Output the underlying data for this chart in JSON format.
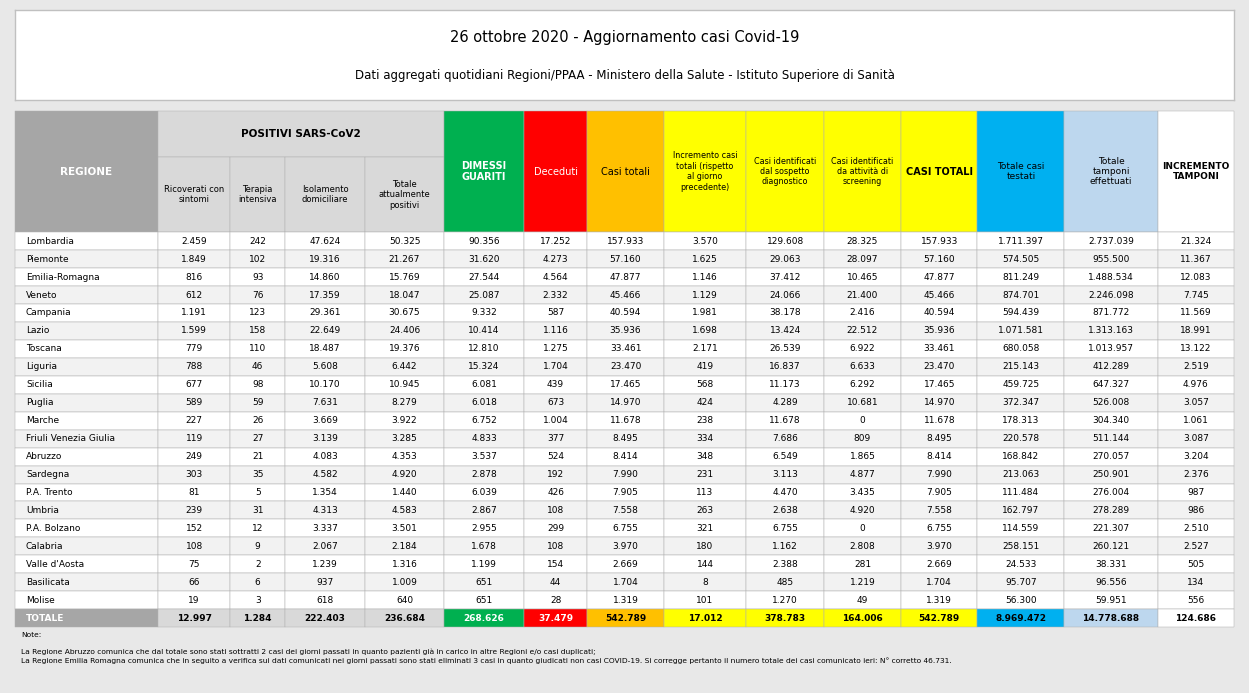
{
  "title1": "26 ottobre 2020 - Aggiornamento casi Covid-19",
  "title2": "Dati aggregati quotidiani Regioni/PPAA - Ministero della Salute - Istituto Superiore di Sanità",
  "rows": [
    [
      "Lombardia",
      "2.459",
      "242",
      "47.624",
      "50.325",
      "90.356",
      "17.252",
      "157.933",
      "3.570",
      "129.608",
      "28.325",
      "157.933",
      "1.711.397",
      "2.737.039",
      "21.324"
    ],
    [
      "Piemonte",
      "1.849",
      "102",
      "19.316",
      "21.267",
      "31.620",
      "4.273",
      "57.160",
      "1.625",
      "29.063",
      "28.097",
      "57.160",
      "574.505",
      "955.500",
      "11.367"
    ],
    [
      "Emilia-Romagna",
      "816",
      "93",
      "14.860",
      "15.769",
      "27.544",
      "4.564",
      "47.877",
      "1.146",
      "37.412",
      "10.465",
      "47.877",
      "811.249",
      "1.488.534",
      "12.083"
    ],
    [
      "Veneto",
      "612",
      "76",
      "17.359",
      "18.047",
      "25.087",
      "2.332",
      "45.466",
      "1.129",
      "24.066",
      "21.400",
      "45.466",
      "874.701",
      "2.246.098",
      "7.745"
    ],
    [
      "Campania",
      "1.191",
      "123",
      "29.361",
      "30.675",
      "9.332",
      "587",
      "40.594",
      "1.981",
      "38.178",
      "2.416",
      "40.594",
      "594.439",
      "871.772",
      "11.569"
    ],
    [
      "Lazio",
      "1.599",
      "158",
      "22.649",
      "24.406",
      "10.414",
      "1.116",
      "35.936",
      "1.698",
      "13.424",
      "22.512",
      "35.936",
      "1.071.581",
      "1.313.163",
      "18.991"
    ],
    [
      "Toscana",
      "779",
      "110",
      "18.487",
      "19.376",
      "12.810",
      "1.275",
      "33.461",
      "2.171",
      "26.539",
      "6.922",
      "33.461",
      "680.058",
      "1.013.957",
      "13.122"
    ],
    [
      "Liguria",
      "788",
      "46",
      "5.608",
      "6.442",
      "15.324",
      "1.704",
      "23.470",
      "419",
      "16.837",
      "6.633",
      "23.470",
      "215.143",
      "412.289",
      "2.519"
    ],
    [
      "Sicilia",
      "677",
      "98",
      "10.170",
      "10.945",
      "6.081",
      "439",
      "17.465",
      "568",
      "11.173",
      "6.292",
      "17.465",
      "459.725",
      "647.327",
      "4.976"
    ],
    [
      "Puglia",
      "589",
      "59",
      "7.631",
      "8.279",
      "6.018",
      "673",
      "14.970",
      "424",
      "4.289",
      "10.681",
      "14.970",
      "372.347",
      "526.008",
      "3.057"
    ],
    [
      "Marche",
      "227",
      "26",
      "3.669",
      "3.922",
      "6.752",
      "1.004",
      "11.678",
      "238",
      "11.678",
      "0",
      "11.678",
      "178.313",
      "304.340",
      "1.061"
    ],
    [
      "Friuli Venezia Giulia",
      "119",
      "27",
      "3.139",
      "3.285",
      "4.833",
      "377",
      "8.495",
      "334",
      "7.686",
      "809",
      "8.495",
      "220.578",
      "511.144",
      "3.087"
    ],
    [
      "Abruzzo",
      "249",
      "21",
      "4.083",
      "4.353",
      "3.537",
      "524",
      "8.414",
      "348",
      "6.549",
      "1.865",
      "8.414",
      "168.842",
      "270.057",
      "3.204"
    ],
    [
      "Sardegna",
      "303",
      "35",
      "4.582",
      "4.920",
      "2.878",
      "192",
      "7.990",
      "231",
      "3.113",
      "4.877",
      "7.990",
      "213.063",
      "250.901",
      "2.376"
    ],
    [
      "P.A. Trento",
      "81",
      "5",
      "1.354",
      "1.440",
      "6.039",
      "426",
      "7.905",
      "113",
      "4.470",
      "3.435",
      "7.905",
      "111.484",
      "276.004",
      "987"
    ],
    [
      "Umbria",
      "239",
      "31",
      "4.313",
      "4.583",
      "2.867",
      "108",
      "7.558",
      "263",
      "2.638",
      "4.920",
      "7.558",
      "162.797",
      "278.289",
      "986"
    ],
    [
      "P.A. Bolzano",
      "152",
      "12",
      "3.337",
      "3.501",
      "2.955",
      "299",
      "6.755",
      "321",
      "6.755",
      "0",
      "6.755",
      "114.559",
      "221.307",
      "2.510"
    ],
    [
      "Calabria",
      "108",
      "9",
      "2.067",
      "2.184",
      "1.678",
      "108",
      "3.970",
      "180",
      "1.162",
      "2.808",
      "3.970",
      "258.151",
      "260.121",
      "2.527"
    ],
    [
      "Valle d'Aosta",
      "75",
      "2",
      "1.239",
      "1.316",
      "1.199",
      "154",
      "2.669",
      "144",
      "2.388",
      "281",
      "2.669",
      "24.533",
      "38.331",
      "505"
    ],
    [
      "Basilicata",
      "66",
      "6",
      "937",
      "1.009",
      "651",
      "44",
      "1.704",
      "8",
      "485",
      "1.219",
      "1.704",
      "95.707",
      "96.556",
      "134"
    ],
    [
      "Molise",
      "19",
      "3",
      "618",
      "640",
      "651",
      "28",
      "1.319",
      "101",
      "1.270",
      "49",
      "1.319",
      "56.300",
      "59.951",
      "556"
    ]
  ],
  "totale": [
    "TOTALE",
    "12.997",
    "1.284",
    "222.403",
    "236.684",
    "268.626",
    "37.479",
    "542.789",
    "17.012",
    "378.783",
    "164.006",
    "542.789",
    "8.969.472",
    "14.778.688",
    "124.686"
  ],
  "note_line1": "Note:",
  "note_line2": "La Regione Abruzzo comunica che dal totale sono stati sottratti 2 casi dei giorni passati in quanto pazienti già in carico in altre Regioni e/o casi duplicati;",
  "note_line3": "La Regione Emilia Romagna comunica che in seguito a verifica sui dati comunicati nei giorni passati sono stati eliminati 3 casi in quanto giudicati non casi COVID-19. Si corregge pertanto il numero totale dei casi comunicato ieri: N° corretto 46.731.",
  "bg_color": "#e8e8e8",
  "table_bg": "#ffffff",
  "col_widths_raw": [
    1.35,
    0.68,
    0.52,
    0.75,
    0.75,
    0.75,
    0.6,
    0.72,
    0.78,
    0.73,
    0.73,
    0.72,
    0.82,
    0.88,
    0.72
  ],
  "col_header_bg": [
    "#a6a6a6",
    "#d9d9d9",
    "#d9d9d9",
    "#d9d9d9",
    "#d9d9d9",
    "#00b050",
    "#ff0000",
    "#ffc000",
    "#ffff00",
    "#ffff00",
    "#ffff00",
    "#ffff00",
    "#00b0f0",
    "#bdd7ee",
    "#ffffff"
  ],
  "col_header_tc": [
    "#ffffff",
    "#000000",
    "#000000",
    "#000000",
    "#000000",
    "#ffffff",
    "#ffffff",
    "#000000",
    "#000000",
    "#000000",
    "#000000",
    "#000000",
    "#000000",
    "#000000",
    "#000000"
  ],
  "totale_cell_bg": [
    "#a6a6a6",
    "#d9d9d9",
    "#d9d9d9",
    "#d9d9d9",
    "#d9d9d9",
    "#00b050",
    "#ff0000",
    "#ffc000",
    "#ffff00",
    "#ffff00",
    "#ffff00",
    "#ffff00",
    "#00b0f0",
    "#bdd7ee",
    "#ffffff"
  ],
  "totale_cell_tc": [
    "#ffffff",
    "#000000",
    "#000000",
    "#000000",
    "#000000",
    "#ffffff",
    "#ffffff",
    "#000000",
    "#000000",
    "#000000",
    "#000000",
    "#000000",
    "#000000",
    "#000000",
    "#000000"
  ],
  "header_row1_labels": [
    "",
    "POSITIVI SARS-CoV2",
    "",
    "",
    "",
    "DIMESSI\nGUARITI",
    "Deceduti",
    "Casi totali",
    "Incremento casi\ntotali (rispetto\nal giorno\nprecedente)",
    "Casi identificati\ndal sospetto\ndiagnostico",
    "Casi identificati\nda attività di\nscreening",
    "CASI TOTALI",
    "Totale casi\ntestati",
    "Totale\ntamponi\neffettuati",
    "INCREMENTO\nTAMPONI"
  ],
  "header_row2_labels": [
    "REGIONE",
    "Ricoverati con\nsintomi",
    "Terapia\nintensiva",
    "Isolamento\ndomiciliare",
    "Totale\nattualmente\npositivi",
    "",
    "",
    "",
    "",
    "",
    "",
    "",
    "",
    "",
    ""
  ],
  "row_even_bg": "#ffffff",
  "row_odd_bg": "#f2f2f2",
  "grid_color": "#b0b0b0",
  "title_box_bg": "#ffffff",
  "title_box_border": "#c0c0c0"
}
